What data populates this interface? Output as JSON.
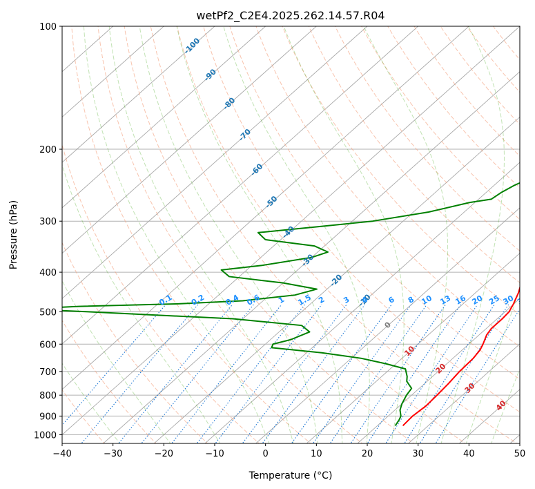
{
  "chart_data": {
    "type": "line",
    "subtype": "skew-t log-p sounding",
    "title": "wetPf2_C2E4.2025.262.14.57.R04",
    "xlabel": "Temperature (°C)",
    "ylabel": "Pressure (hPa)",
    "xlim": [
      -40,
      50
    ],
    "ylim": [
      1050,
      100
    ],
    "skew_deg_per_decade": 90,
    "grid": true,
    "x_ticks": [
      "−40",
      "−30",
      "−20",
      "−10",
      "0",
      "10",
      "20",
      "30",
      "40",
      "50"
    ],
    "x_tick_values": [
      -40,
      -30,
      -20,
      -10,
      0,
      10,
      20,
      30,
      40,
      50
    ],
    "y_ticks": [
      "100",
      "200",
      "300",
      "400",
      "500",
      "600",
      "700",
      "800",
      "900",
      "1000"
    ],
    "y_tick_values": [
      100,
      200,
      300,
      400,
      500,
      600,
      700,
      800,
      900,
      1000
    ],
    "isotherm_labels": [
      {
        "text": "-100",
        "value": -100,
        "p": 112
      },
      {
        "text": "-90",
        "value": -90,
        "p": 132
      },
      {
        "text": "-80",
        "value": -80,
        "p": 155
      },
      {
        "text": "-70",
        "value": -70,
        "p": 185
      },
      {
        "text": "-60",
        "value": -60,
        "p": 225
      },
      {
        "text": "-50",
        "value": -50,
        "p": 270
      },
      {
        "text": "-40",
        "value": -40,
        "p": 320
      },
      {
        "text": "-30",
        "value": -30,
        "p": 375
      },
      {
        "text": "-20",
        "value": -20,
        "p": 420
      },
      {
        "text": "-10",
        "value": -10,
        "p": 470
      },
      {
        "text": "0",
        "value": 0,
        "p": 540
      },
      {
        "text": "10",
        "value": 10,
        "p": 625
      },
      {
        "text": "20",
        "value": 20,
        "p": 690
      },
      {
        "text": "30",
        "value": 30,
        "p": 770
      },
      {
        "text": "40",
        "value": 40,
        "p": 850
      }
    ],
    "mixing_ratio_labels": [
      "0.1",
      "0.2",
      "0.4",
      "0.6",
      "1",
      "1.5",
      "2",
      "3",
      "4",
      "6",
      "8",
      "10",
      "13",
      "16",
      "20",
      "25",
      "30",
      "36"
    ],
    "mixing_ratio_values": [
      0.1,
      0.2,
      0.4,
      0.6,
      1,
      1.5,
      2,
      3,
      4,
      6,
      8,
      10,
      13,
      16,
      20,
      25,
      30,
      36
    ],
    "mixing_ratio_label_pressure": 480,
    "dry_adiabat_thetas": [
      240,
      250,
      260,
      270,
      280,
      290,
      300,
      310,
      320,
      330,
      340,
      350,
      360,
      370,
      380,
      390,
      400,
      410,
      420,
      430,
      440,
      450,
      460,
      470,
      480,
      490,
      500,
      510,
      520,
      530,
      540
    ],
    "moist_adiabat_start_temps": [
      -30,
      -20,
      -10,
      0,
      5,
      10,
      15,
      20,
      25,
      30,
      35,
      40,
      45
    ],
    "series": [
      {
        "name": "Temperature",
        "color": "#ff0000",
        "points": [
          [
            950,
            25
          ],
          [
            900,
            24.8
          ],
          [
            850,
            25.2
          ],
          [
            800,
            25
          ],
          [
            750,
            24.7
          ],
          [
            700,
            24.2
          ],
          [
            650,
            24
          ],
          [
            620,
            23.5
          ],
          [
            600,
            22.8
          ],
          [
            570,
            21.5
          ],
          [
            550,
            21
          ],
          [
            520,
            21
          ],
          [
            500,
            20.8
          ],
          [
            480,
            20
          ],
          [
            450,
            18.5
          ],
          [
            420,
            16.5
          ],
          [
            400,
            15
          ],
          [
            380,
            13
          ],
          [
            350,
            10.5
          ],
          [
            320,
            8
          ],
          [
            300,
            6.5
          ],
          [
            280,
            4.3
          ],
          [
            260,
            2
          ],
          [
            245,
            0.4
          ],
          [
            230,
            -2.4
          ],
          [
            210,
            -5.5
          ],
          [
            200,
            -6.8
          ],
          [
            190,
            -8.3
          ],
          [
            180,
            -9.3
          ],
          [
            170,
            -10
          ],
          [
            160,
            -11.8
          ],
          [
            150,
            -13
          ],
          [
            140,
            -14.4
          ],
          [
            130,
            -16.2
          ],
          [
            120,
            -18.5
          ],
          [
            110,
            -21.2
          ],
          [
            100,
            -24.5
          ]
        ]
      },
      {
        "name": "Dewpoint",
        "color": "#008000",
        "points": [
          [
            950,
            23.5
          ],
          [
            920,
            23
          ],
          [
            900,
            22.5
          ],
          [
            870,
            21
          ],
          [
            840,
            20
          ],
          [
            800,
            19
          ],
          [
            770,
            18.5
          ],
          [
            740,
            16
          ],
          [
            720,
            15
          ],
          [
            690,
            13
          ],
          [
            670,
            8
          ],
          [
            650,
            2
          ],
          [
            630,
            -7
          ],
          [
            612,
            -18
          ],
          [
            600,
            -18.5
          ],
          [
            585,
            -16
          ],
          [
            560,
            -14
          ],
          [
            540,
            -17
          ],
          [
            520,
            -32
          ],
          [
            508,
            -50
          ],
          [
            500,
            -62
          ],
          [
            492,
            -75
          ],
          [
            485,
            -65
          ],
          [
            478,
            -46
          ],
          [
            470,
            -34
          ],
          [
            455,
            -25
          ],
          [
            440,
            -22
          ],
          [
            425,
            -30
          ],
          [
            410,
            -42
          ],
          [
            395,
            -45
          ],
          [
            385,
            -38
          ],
          [
            368,
            -30
          ],
          [
            357,
            -28
          ],
          [
            345,
            -32
          ],
          [
            333,
            -43
          ],
          [
            320,
            -46
          ],
          [
            310,
            -36
          ],
          [
            300,
            -26
          ],
          [
            285,
            -17
          ],
          [
            270,
            -11
          ],
          [
            265,
            -7.5
          ],
          [
            255,
            -7
          ],
          [
            245,
            -6
          ],
          [
            230,
            -3.5
          ],
          [
            210,
            -6
          ],
          [
            200,
            -7.8
          ],
          [
            190,
            -9
          ],
          [
            180,
            -10.5
          ],
          [
            170,
            -13.5
          ],
          [
            162,
            -17.5
          ],
          [
            155,
            -21
          ],
          [
            150,
            -22
          ],
          [
            142,
            -20
          ],
          [
            135,
            -17
          ],
          [
            128,
            -16.5
          ],
          [
            120,
            -19
          ],
          [
            110,
            -21.5
          ],
          [
            100,
            -24.5
          ]
        ]
      }
    ]
  }
}
